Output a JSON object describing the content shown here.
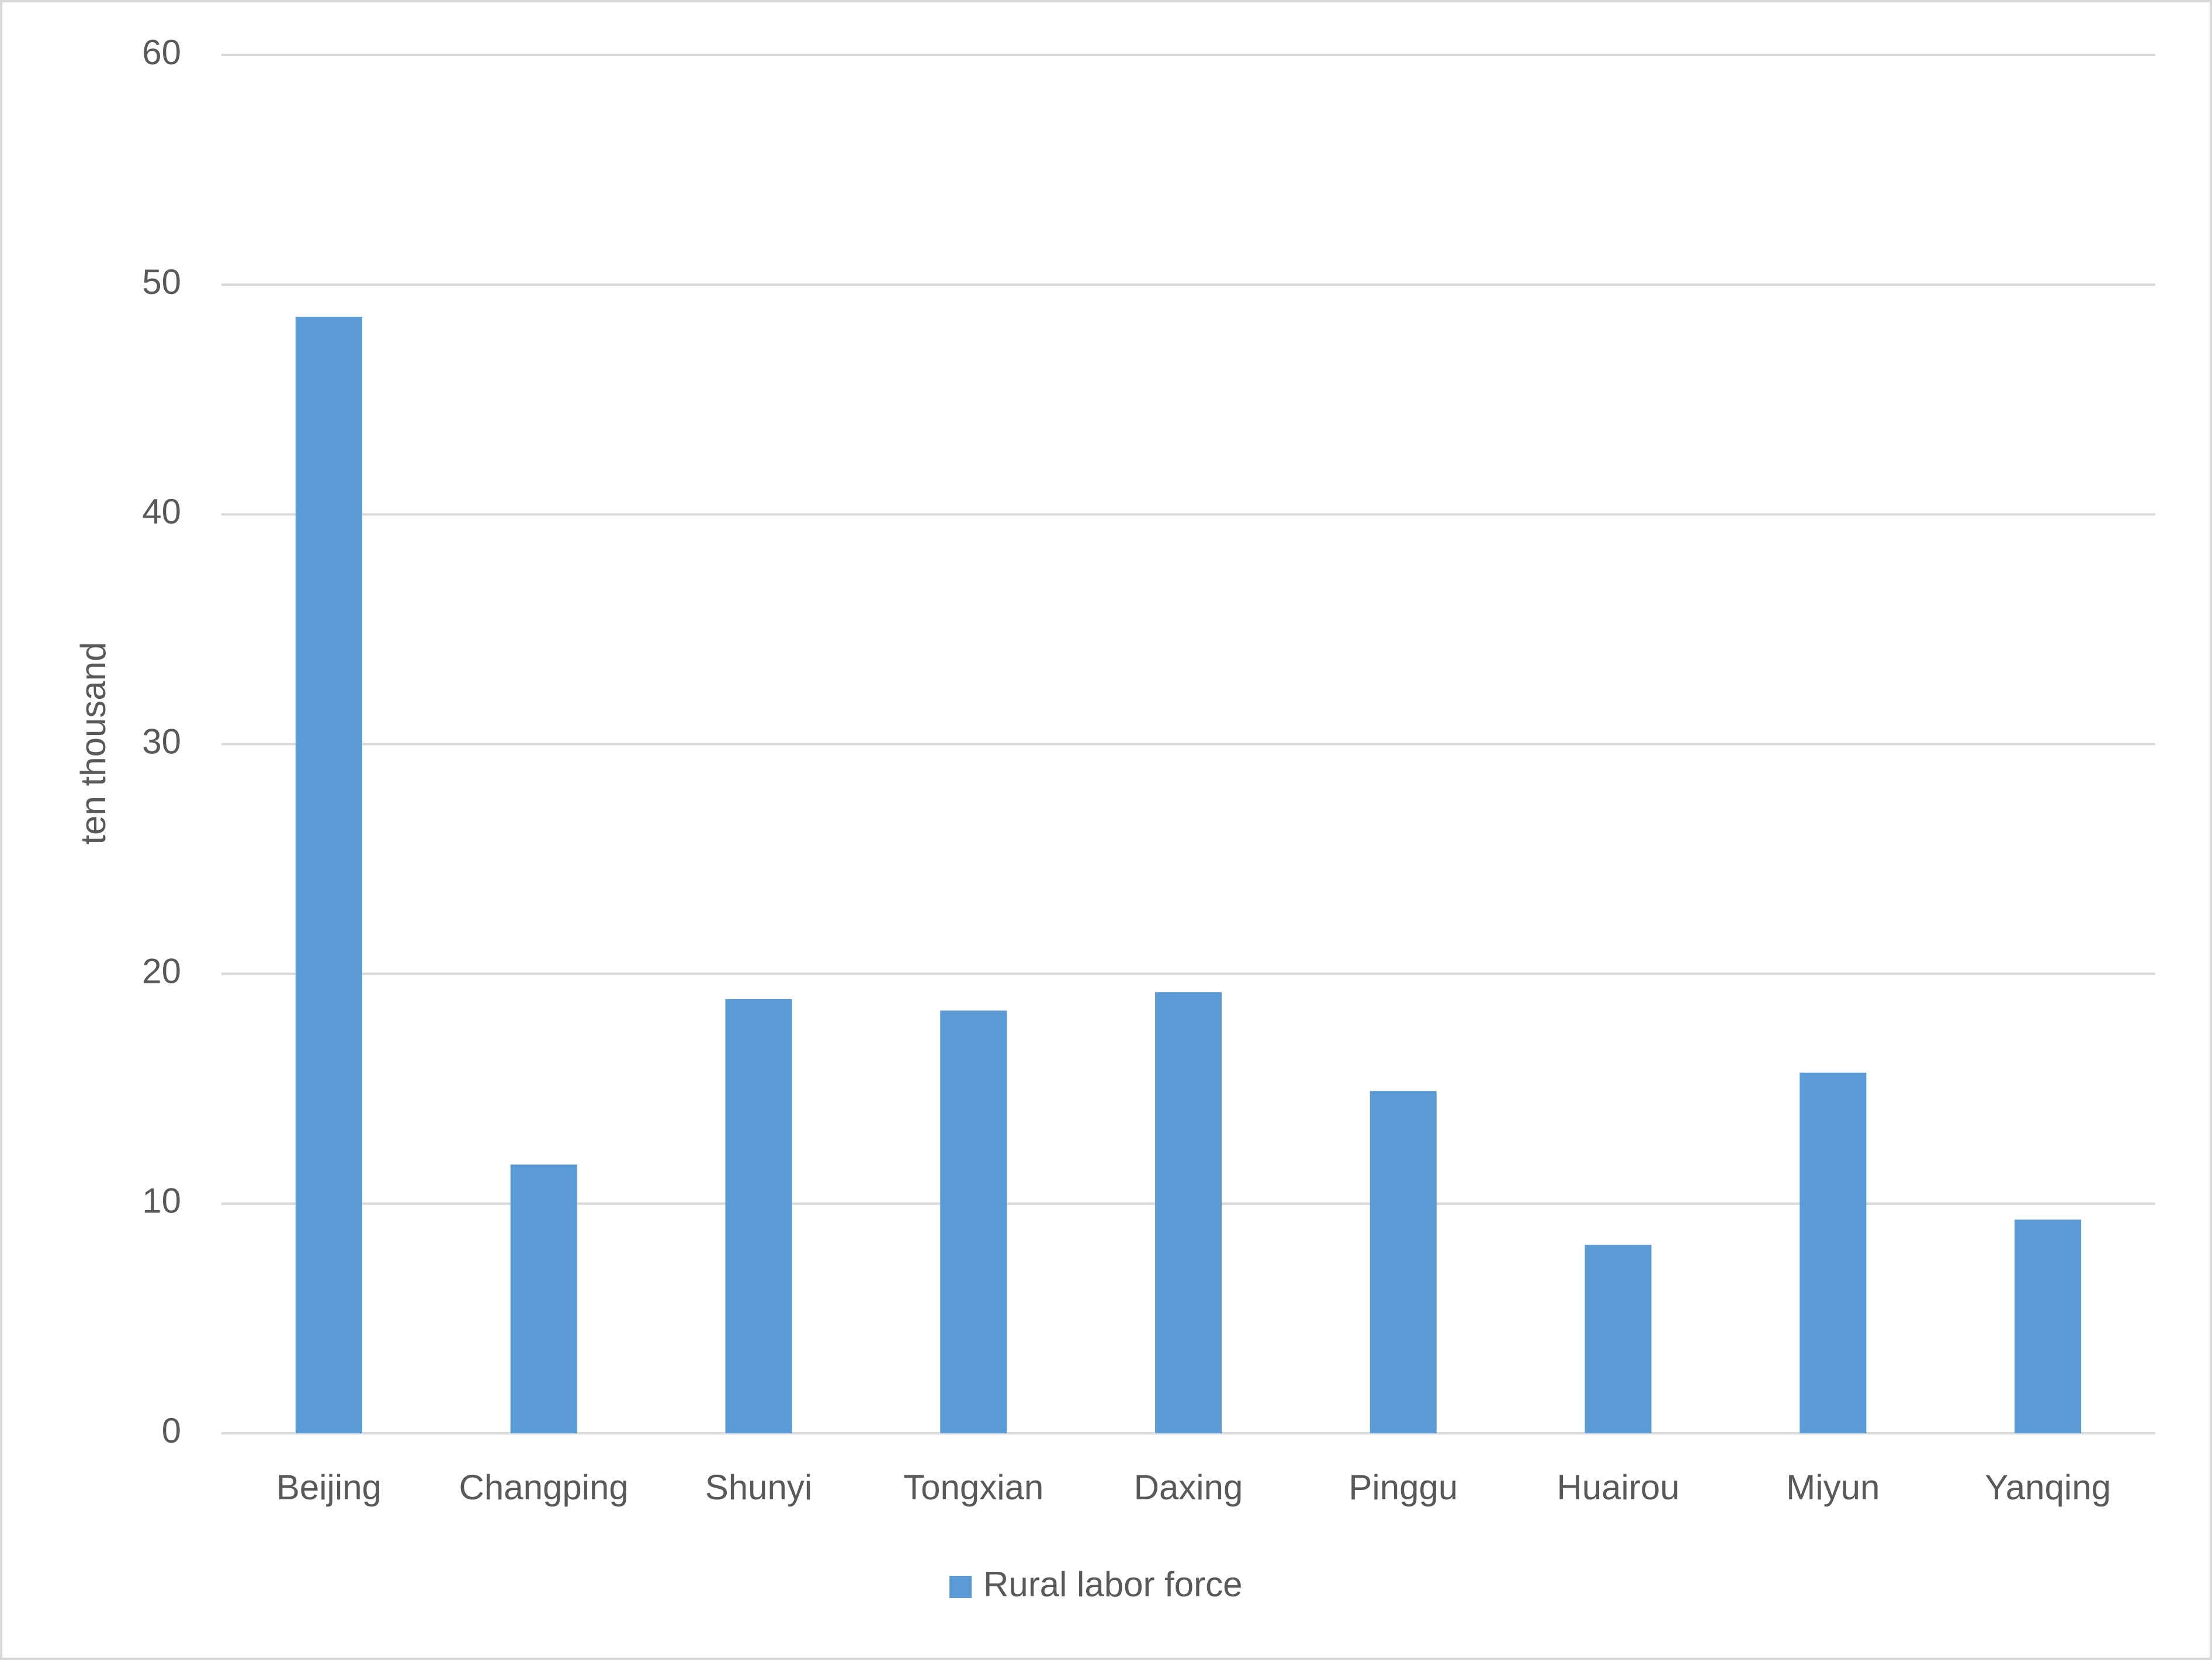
{
  "chart_data": {
    "type": "bar",
    "y_label": "ten thousand",
    "categories": [
      "Beijing",
      "Changping",
      "Shunyi",
      "Tongxian",
      "Daxing",
      "Pinggu",
      "Huairou",
      "Miyun",
      "Yanqing"
    ],
    "series": [
      {
        "name": "Rural labor force",
        "color": "#5b9bd5",
        "values": [
          48.6,
          11.7,
          18.9,
          18.4,
          19.2,
          14.9,
          8.2,
          15.7,
          9.3
        ]
      }
    ],
    "ylim": [
      0,
      60
    ],
    "yticks": [
      0,
      10,
      20,
      30,
      40,
      50,
      60
    ],
    "grid": true,
    "legend": "bottom"
  }
}
